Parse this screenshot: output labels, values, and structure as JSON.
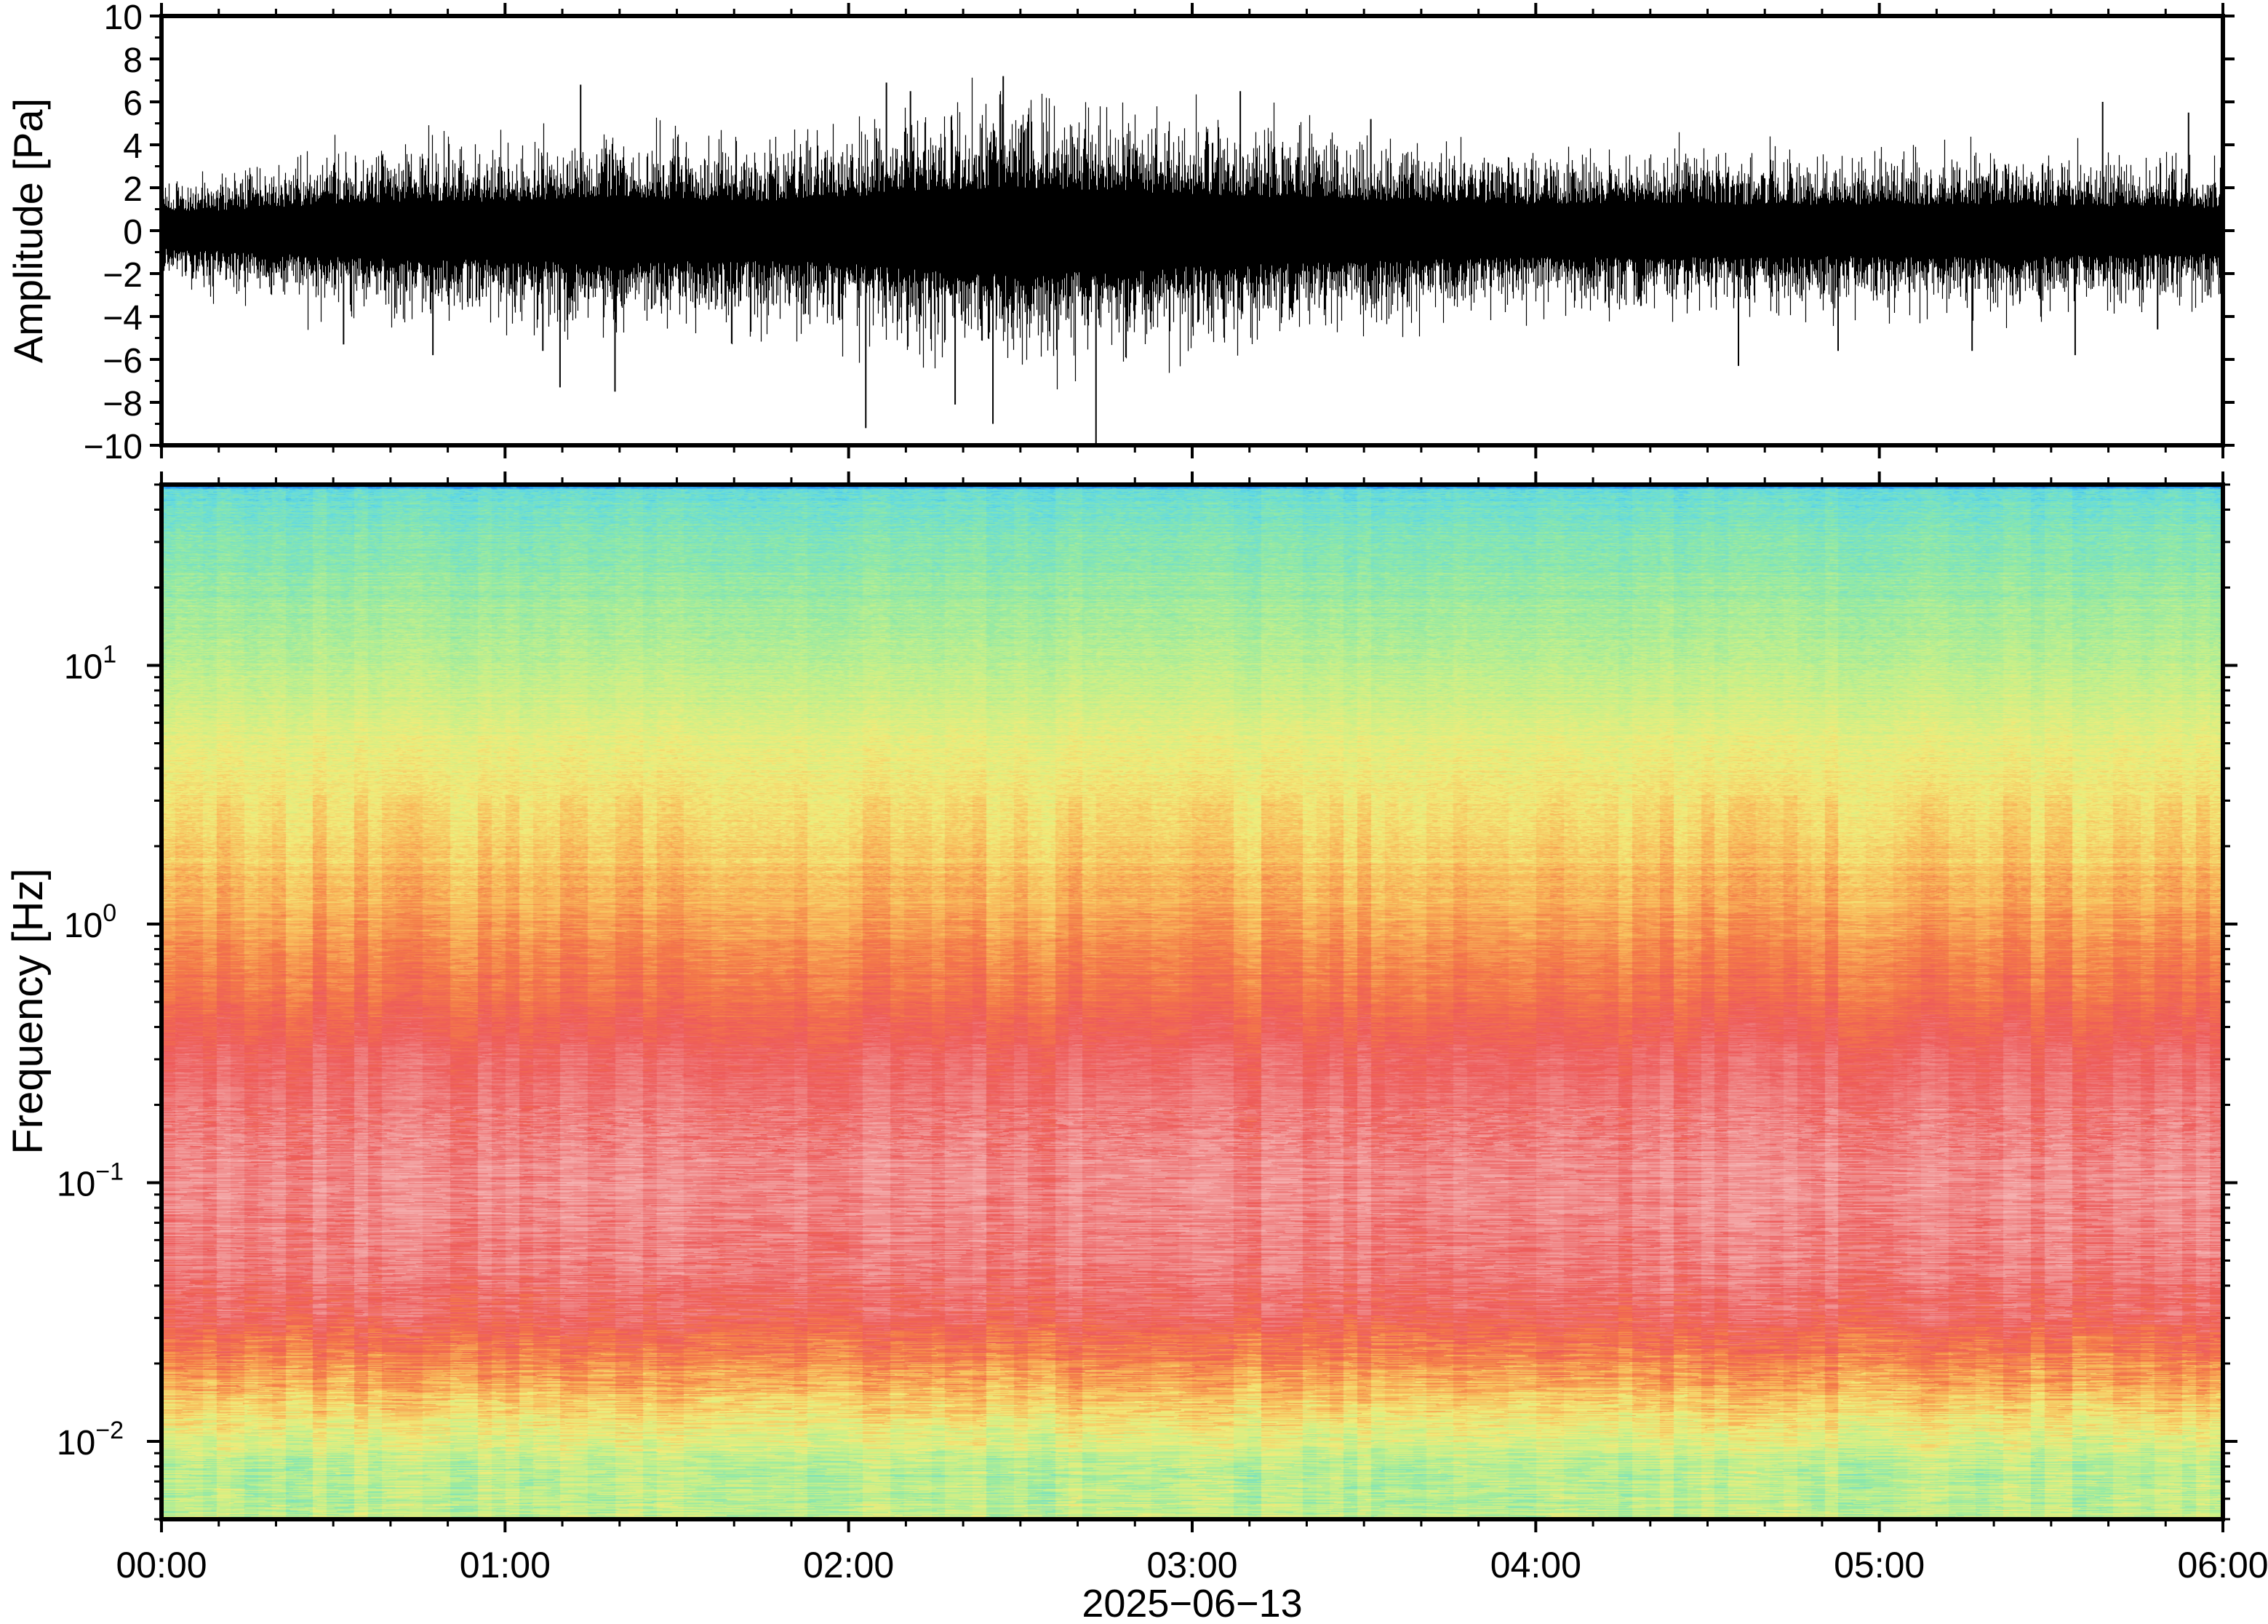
{
  "chart_data": [
    {
      "type": "line",
      "title": "",
      "xlabel": "",
      "ylabel": "Amplitude [Pa]",
      "ylim": [
        -10,
        10
      ],
      "yticks": [
        10,
        8,
        6,
        4,
        2,
        0,
        -2,
        -4,
        -6,
        -8,
        -10
      ],
      "ytick_labels": [
        "10",
        "8",
        "6",
        "4",
        "2",
        "0",
        "−2",
        "−4",
        "−6",
        "−8",
        "−10"
      ],
      "xlim_hours": [
        0,
        6
      ],
      "envelope": {
        "time_hours": [
          0,
          0.25,
          0.5,
          0.75,
          1.0,
          1.25,
          1.5,
          1.75,
          2.0,
          2.25,
          2.5,
          2.75,
          3.0,
          3.25,
          3.5,
          3.75,
          4.0,
          4.25,
          4.5,
          4.75,
          5.0,
          5.25,
          5.5,
          5.75,
          6.0
        ],
        "typical_amplitude": [
          1.5,
          1.8,
          2.2,
          2.5,
          2.4,
          2.8,
          2.6,
          2.5,
          2.8,
          3.4,
          3.6,
          3.4,
          3.0,
          2.8,
          2.6,
          2.4,
          2.2,
          2.3,
          2.2,
          2.2,
          2.1,
          2.2,
          2.1,
          2.0,
          1.9
        ]
      },
      "spikes": [
        {
          "t": 0.53,
          "v": -5.3
        },
        {
          "t": 0.79,
          "v": -5.8
        },
        {
          "t": 1.11,
          "v": -5.6
        },
        {
          "t": 1.16,
          "v": -7.3
        },
        {
          "t": 1.22,
          "v": 6.8
        },
        {
          "t": 1.32,
          "v": -7.5
        },
        {
          "t": 2.05,
          "v": -9.2
        },
        {
          "t": 2.11,
          "v": 6.9
        },
        {
          "t": 2.18,
          "v": 6.5
        },
        {
          "t": 2.31,
          "v": -8.1
        },
        {
          "t": 2.42,
          "v": -9.0
        },
        {
          "t": 2.45,
          "v": 7.2
        },
        {
          "t": 2.72,
          "v": -10.0
        },
        {
          "t": 3.14,
          "v": 6.5
        },
        {
          "t": 3.52,
          "v": 5.2
        },
        {
          "t": 4.59,
          "v": -6.3
        },
        {
          "t": 4.88,
          "v": -5.6
        },
        {
          "t": 5.27,
          "v": -5.6
        },
        {
          "t": 5.57,
          "v": -5.8
        },
        {
          "t": 5.65,
          "v": 6.0
        },
        {
          "t": 5.81,
          "v": -4.6
        },
        {
          "t": 5.9,
          "v": 5.5
        }
      ]
    },
    {
      "type": "heatmap",
      "title": "",
      "xlabel": "2025−06−13",
      "ylabel": "Frequency [Hz]",
      "yscale": "log",
      "ylim_hz": [
        0.005,
        50
      ],
      "yticks": [
        {
          "base": "10",
          "exp": "1",
          "value": 10
        },
        {
          "base": "10",
          "exp": "0",
          "value": 1
        },
        {
          "base": "10",
          "exp": "−1",
          "value": 0.1
        },
        {
          "base": "10",
          "exp": "−2",
          "value": 0.01
        }
      ],
      "xticks": [
        "00:00",
        "01:00",
        "02:00",
        "03:00",
        "04:00",
        "05:00",
        "06:00"
      ],
      "xtick_hours": [
        0,
        1,
        2,
        3,
        4,
        5,
        6
      ],
      "colormap": "rainbow (blue → cyan → green → yellow → orange → red → pink)",
      "relative_level_profile": {
        "frequency_hz": [
          50,
          48,
          40,
          20,
          10,
          5,
          2,
          1,
          0.5,
          0.3,
          0.1,
          0.05,
          0.03,
          0.02,
          0.012,
          0.008,
          0.005
        ],
        "level": [
          0.0,
          0.3,
          0.32,
          0.38,
          0.44,
          0.52,
          0.6,
          0.67,
          0.76,
          0.84,
          0.92,
          0.88,
          0.82,
          0.7,
          0.55,
          0.43,
          0.45
        ]
      }
    }
  ],
  "colors": {
    "background": "#ffffff",
    "axes": "#000000",
    "trace": "#000000",
    "colormap_stops": [
      "#081d8c",
      "#1e5fe6",
      "#2aa0f0",
      "#5fd9e6",
      "#8ee8a8",
      "#c6f08a",
      "#f2ec7a",
      "#f9b95a",
      "#f47a48",
      "#ee5a5a",
      "#f08c8c",
      "#f5b0b0"
    ]
  }
}
